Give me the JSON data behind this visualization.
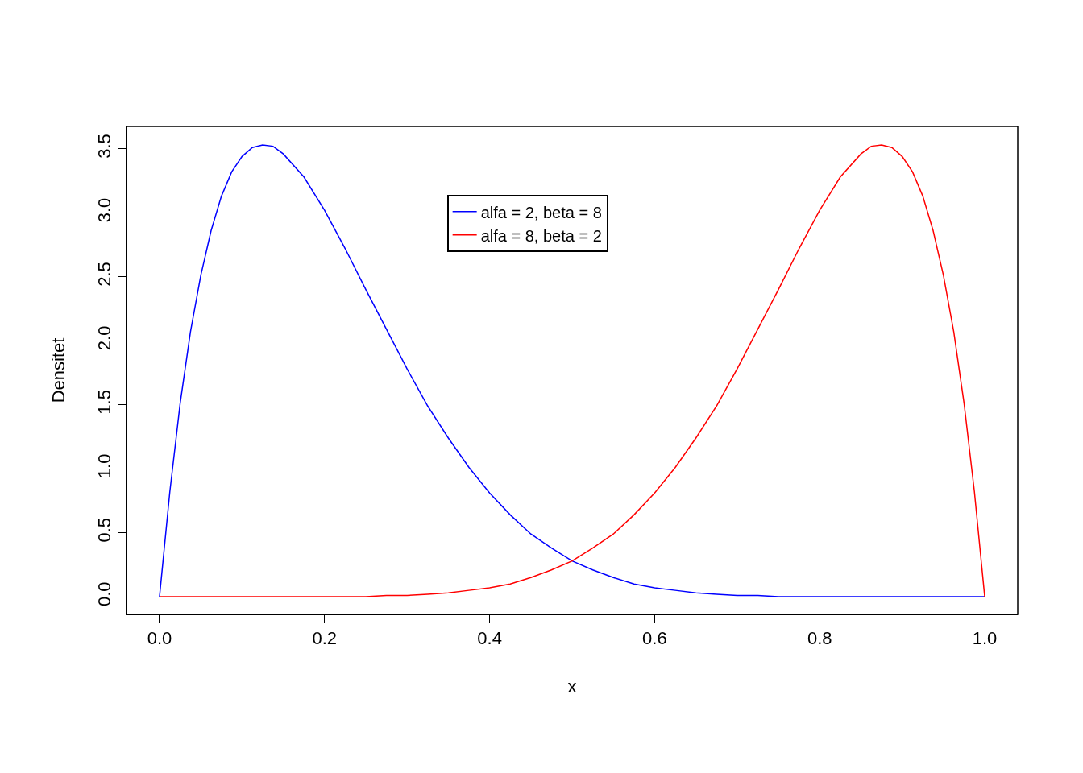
{
  "chart_data": {
    "type": "line",
    "xlabel": "x",
    "ylabel": "Densitet",
    "x": [
      0,
      0.0125,
      0.025,
      0.0375,
      0.05,
      0.0625,
      0.075,
      0.0875,
      0.1,
      0.1125,
      0.125,
      0.1375,
      0.15,
      0.175,
      0.2,
      0.225,
      0.25,
      0.275,
      0.3,
      0.325,
      0.35,
      0.375,
      0.4,
      0.425,
      0.45,
      0.475,
      0.5,
      0.525,
      0.55,
      0.575,
      0.6,
      0.625,
      0.65,
      0.675,
      0.7,
      0.725,
      0.75,
      0.775,
      0.8,
      0.825,
      0.85,
      0.8625,
      0.875,
      0.8875,
      0.9,
      0.9125,
      0.925,
      0.9375,
      0.95,
      0.9625,
      0.975,
      0.9875,
      1
    ],
    "series": [
      {
        "name": "alfa = 2, beta = 8",
        "color": "#0000ff",
        "values": [
          0,
          0.82,
          1.51,
          2.07,
          2.51,
          2.86,
          3.13,
          3.32,
          3.44,
          3.51,
          3.53,
          3.52,
          3.46,
          3.28,
          3.02,
          2.72,
          2.4,
          2.09,
          1.78,
          1.49,
          1.24,
          1.01,
          0.81,
          0.64,
          0.49,
          0.38,
          0.28,
          0.21,
          0.15,
          0.1,
          0.07,
          0.05,
          0.03,
          0.02,
          0.01,
          0.01,
          0,
          0,
          0,
          0,
          0,
          0,
          0,
          0,
          0,
          0,
          0,
          0,
          0,
          0,
          0,
          0,
          0
        ]
      },
      {
        "name": "alfa = 8, beta = 2",
        "color": "#ff0000",
        "values": [
          0,
          0,
          0,
          0,
          0,
          0,
          0,
          0,
          0,
          0,
          0,
          0,
          0,
          0,
          0,
          0,
          0,
          0.01,
          0.01,
          0.02,
          0.03,
          0.05,
          0.07,
          0.1,
          0.15,
          0.21,
          0.28,
          0.38,
          0.49,
          0.64,
          0.81,
          1.01,
          1.24,
          1.49,
          1.78,
          2.09,
          2.4,
          2.72,
          3.02,
          3.28,
          3.46,
          3.52,
          3.53,
          3.51,
          3.44,
          3.32,
          3.13,
          2.86,
          2.51,
          2.07,
          1.51,
          0.82,
          0
        ]
      }
    ],
    "xlim": [
      -0.04,
      1.04
    ],
    "ylim": [
      -0.138,
      3.675
    ],
    "xticks": [
      {
        "value": 0,
        "label": "0.0"
      },
      0.2,
      0.4,
      0.6,
      0.8,
      {
        "value": 1,
        "label": "1.0"
      }
    ],
    "yticks": [
      {
        "value": 0,
        "label": "0.0"
      },
      0.5,
      {
        "value": 1,
        "label": "1.0"
      },
      1.5,
      {
        "value": 2,
        "label": "2.0"
      },
      2.5,
      {
        "value": 3,
        "label": "3.0"
      },
      3.5
    ],
    "legend": "top",
    "marker": "none",
    "line_style": "solid"
  }
}
